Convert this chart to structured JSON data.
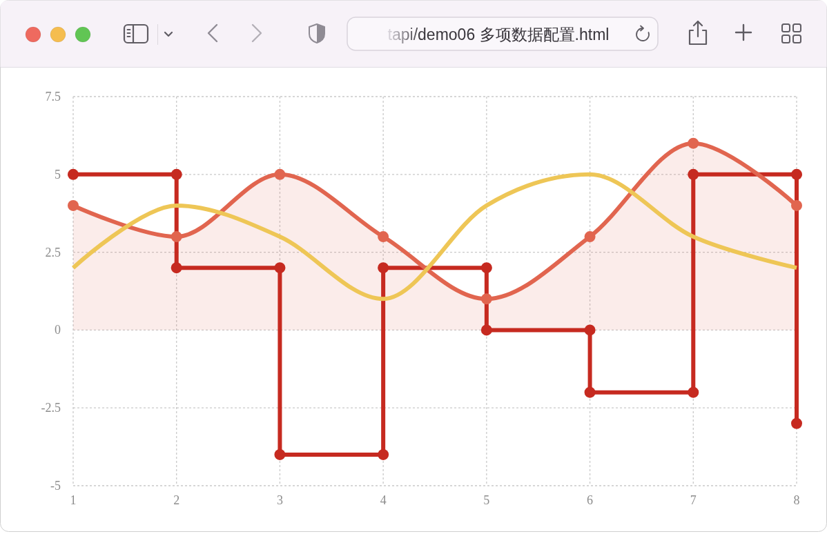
{
  "chart_data": {
    "type": "line",
    "annotations": [
      "tapi/demo06 多项数据配置.html"
    ],
    "xlim": [
      1,
      8
    ],
    "xticks": [
      1,
      2,
      3,
      4,
      5,
      6,
      7,
      8
    ],
    "ylim": [
      -5,
      7.5
    ],
    "yticks": [
      -5,
      -2.5,
      0,
      2.5,
      5,
      7.5
    ],
    "grid": true,
    "series": [
      {
        "type": "line",
        "marker": "circle",
        "color": "#c62a20",
        "x": [
          1,
          2,
          2,
          3,
          3,
          4,
          4,
          5,
          5,
          6,
          6,
          7,
          7,
          8,
          8
        ],
        "values": [
          5,
          5,
          2,
          2,
          -4,
          -4,
          2,
          2,
          0,
          0,
          -2,
          -2,
          5,
          5,
          -3
        ]
      },
      {
        "type": "area",
        "marker": "circle",
        "color": "#e1654f",
        "x": [
          1,
          2,
          3,
          4,
          5,
          6,
          7,
          8
        ],
        "values": [
          4,
          3,
          5,
          3,
          1,
          3,
          6,
          4
        ]
      },
      {
        "type": "line",
        "marker": "none",
        "color": "#eec656",
        "x": [
          1,
          2,
          3,
          4,
          5,
          6,
          7,
          8
        ],
        "values": [
          2,
          4,
          3,
          1,
          4,
          5,
          3,
          2
        ]
      }
    ]
  }
}
